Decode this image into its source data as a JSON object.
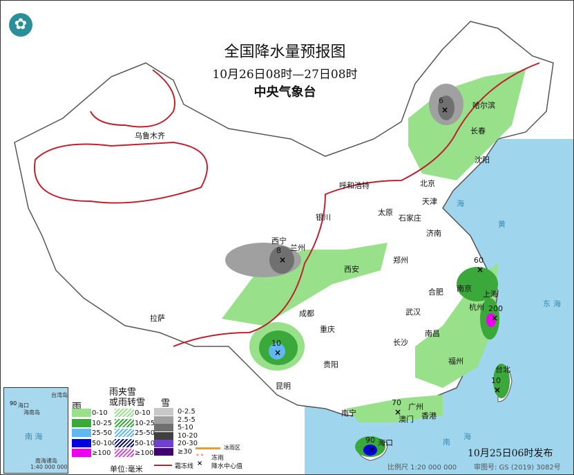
{
  "header": {
    "title": "全国降水量预报图",
    "period": "10月26日08时—27日08时",
    "issuer": "中央气象台",
    "logo_icon": "cma-logo-icon"
  },
  "cities": [
    "乌鲁木齐",
    "哈尔滨",
    "长春",
    "沈阳",
    "呼和浩特",
    "北京",
    "天津",
    "太原",
    "石家庄",
    "济南",
    "银川",
    "西宁",
    "兰州",
    "西安",
    "郑州",
    "合肥",
    "南京",
    "上海",
    "杭州",
    "武汉",
    "成都",
    "重庆",
    "拉萨",
    "长沙",
    "南昌",
    "福州",
    "台北",
    "贵阳",
    "昆明",
    "南宁",
    "广州",
    "香港",
    "澳门",
    "海口"
  ],
  "sea_labels": [
    "海",
    "黄",
    "东",
    "海",
    "南",
    "海"
  ],
  "precip_centers": [
    "6",
    "8",
    "60",
    "200",
    "10",
    "10",
    "70",
    "90"
  ],
  "inset": {
    "labels": [
      "海口",
      "海南岛",
      "台湾岛",
      "南 海",
      "南海诸岛",
      "1:40 000 000"
    ],
    "value": "90"
  },
  "legend": {
    "rain": {
      "title": "雨",
      "items": [
        "0-10",
        "10-25",
        "25-50",
        "50-100",
        "≥100"
      ],
      "colors": [
        "#98e08a",
        "#3aa83a",
        "#60b8f0",
        "#0000e0",
        "#f000f0"
      ]
    },
    "sleet": {
      "title": "雨夹雪\n或雨转雪",
      "items": [
        "0-10",
        "10-25",
        "25-50",
        "50-100",
        "≥100"
      ],
      "colors": [
        "#98e08a",
        "#3aa83a",
        "#60b8f0",
        "#101070",
        "#d050d0"
      ]
    },
    "snow": {
      "title": "雪",
      "items": [
        "0-2.5",
        "2.5-5",
        "5-10",
        "10-20",
        "20-30",
        "≥30"
      ],
      "colors": [
        "#c8c8c8",
        "#a0a0a0",
        "#707070",
        "#404040",
        "#7040d0",
        "#400070"
      ]
    },
    "unit": "单位:毫米",
    "freezing_line": "霜冻线",
    "rain_snow_line": "冰雨区",
    "freezing_rain": "冻雨",
    "center_value": "降水中心值"
  },
  "footer": {
    "published": "10月25日06时发布",
    "scale": "比例尺 1:20 000 000",
    "map_number": "审图号: GS (2019) 3082号"
  }
}
